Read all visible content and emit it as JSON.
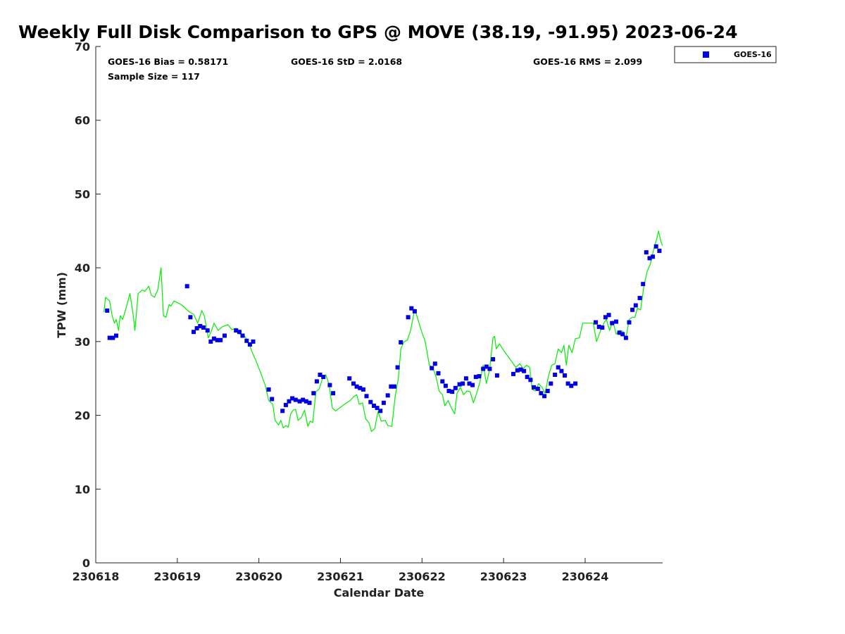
{
  "chart_data": {
    "type": "scatter",
    "title": "Weekly Full Disk Comparison to GPS @ MOVE (38.19, -91.95) 2023-06-24",
    "xlabel": "Calendar Date",
    "ylabel": "TPW (mm)",
    "xlim": [
      0,
      6.95
    ],
    "ylim": [
      0,
      70
    ],
    "xticks": [
      0,
      1,
      2,
      3,
      4,
      5,
      6
    ],
    "xtick_labels": [
      "230618",
      "230619",
      "230620",
      "230621",
      "230622",
      "230623",
      "230624"
    ],
    "yticks": [
      0,
      10,
      20,
      30,
      40,
      50,
      60,
      70
    ],
    "stats": {
      "bias": "GOES-16 Bias = 0.58171",
      "std": "GOES-16 StD = 2.0168",
      "rms": "GOES-16 RMS = 2.099",
      "sample": "Sample Size = 117"
    },
    "legend": {
      "label": "GOES-16",
      "position": "top-right-outside"
    },
    "colors": {
      "goes": "#0000e0",
      "gps": "#00ee00"
    },
    "series": [
      {
        "name": "GOES-16",
        "style": "square-markers",
        "points": [
          [
            0.14,
            34.2
          ],
          [
            0.17,
            30.5
          ],
          [
            0.21,
            30.5
          ],
          [
            0.25,
            30.8
          ],
          [
            1.12,
            37.5
          ],
          [
            1.16,
            33.3
          ],
          [
            1.2,
            31.3
          ],
          [
            1.24,
            31.8
          ],
          [
            1.28,
            32.1
          ],
          [
            1.32,
            31.9
          ],
          [
            1.37,
            31.5
          ],
          [
            1.41,
            30
          ],
          [
            1.45,
            30.4
          ],
          [
            1.49,
            30.2
          ],
          [
            1.53,
            30.2
          ],
          [
            1.58,
            30.8
          ],
          [
            1.72,
            31.5
          ],
          [
            1.76,
            31.3
          ],
          [
            1.8,
            30.8
          ],
          [
            1.85,
            30.1
          ],
          [
            1.89,
            29.6
          ],
          [
            1.93,
            30
          ],
          [
            2.12,
            23.5
          ],
          [
            2.16,
            22.2
          ],
          [
            2.29,
            20.6
          ],
          [
            2.33,
            21.4
          ],
          [
            2.37,
            21.9
          ],
          [
            2.41,
            22.3
          ],
          [
            2.45,
            22.1
          ],
          [
            2.5,
            21.9
          ],
          [
            2.54,
            22.1
          ],
          [
            2.58,
            21.9
          ],
          [
            2.62,
            21.7
          ],
          [
            2.67,
            23
          ],
          [
            2.71,
            24.6
          ],
          [
            2.75,
            25.5
          ],
          [
            2.79,
            25.2
          ],
          [
            2.87,
            24.1
          ],
          [
            2.91,
            23
          ],
          [
            3.11,
            25
          ],
          [
            3.16,
            24.3
          ],
          [
            3.2,
            23.9
          ],
          [
            3.24,
            23.7
          ],
          [
            3.28,
            23.5
          ],
          [
            3.32,
            22.6
          ],
          [
            3.37,
            21.8
          ],
          [
            3.41,
            21.3
          ],
          [
            3.45,
            21
          ],
          [
            3.49,
            20.6
          ],
          [
            3.53,
            21.7
          ],
          [
            3.58,
            22.7
          ],
          [
            3.62,
            23.9
          ],
          [
            3.66,
            23.9
          ],
          [
            3.7,
            26.5
          ],
          [
            3.74,
            29.9
          ],
          [
            3.83,
            33.3
          ],
          [
            3.87,
            34.5
          ],
          [
            3.91,
            34.1
          ],
          [
            4.12,
            26.4
          ],
          [
            4.16,
            27
          ],
          [
            4.2,
            25.7
          ],
          [
            4.25,
            24.6
          ],
          [
            4.29,
            24
          ],
          [
            4.33,
            23.3
          ],
          [
            4.37,
            23.2
          ],
          [
            4.41,
            23.7
          ],
          [
            4.46,
            24.2
          ],
          [
            4.5,
            24.3
          ],
          [
            4.54,
            25
          ],
          [
            4.58,
            24.3
          ],
          [
            4.62,
            24.1
          ],
          [
            4.66,
            25.2
          ],
          [
            4.7,
            25.3
          ],
          [
            4.75,
            26.3
          ],
          [
            4.79,
            26.6
          ],
          [
            4.83,
            26.3
          ],
          [
            4.87,
            27.6
          ],
          [
            4.92,
            25.4
          ],
          [
            5.12,
            25.6
          ],
          [
            5.17,
            26.1
          ],
          [
            5.21,
            26.2
          ],
          [
            5.25,
            26
          ],
          [
            5.29,
            25.2
          ],
          [
            5.33,
            24.8
          ],
          [
            5.37,
            23.8
          ],
          [
            5.42,
            23.6
          ],
          [
            5.46,
            23
          ],
          [
            5.5,
            22.6
          ],
          [
            5.54,
            23.3
          ],
          [
            5.58,
            24.3
          ],
          [
            5.63,
            25.5
          ],
          [
            5.67,
            26.5
          ],
          [
            5.71,
            26
          ],
          [
            5.75,
            25.4
          ],
          [
            5.79,
            24.3
          ],
          [
            5.83,
            24
          ],
          [
            5.88,
            24.3
          ],
          [
            6.13,
            32.6
          ],
          [
            6.17,
            32
          ],
          [
            6.21,
            31.9
          ],
          [
            6.25,
            33.3
          ],
          [
            6.29,
            33.6
          ],
          [
            6.33,
            32.5
          ],
          [
            6.38,
            32.7
          ],
          [
            6.42,
            31.2
          ],
          [
            6.46,
            31
          ],
          [
            6.5,
            30.5
          ],
          [
            6.54,
            32.6
          ],
          [
            6.58,
            34.3
          ],
          [
            6.62,
            34.9
          ],
          [
            6.67,
            35.9
          ],
          [
            6.71,
            37.8
          ],
          [
            6.75,
            42.1
          ],
          [
            6.79,
            41.3
          ],
          [
            6.83,
            41.5
          ],
          [
            6.87,
            42.9
          ],
          [
            6.91,
            42.3
          ]
        ]
      },
      {
        "name": "GPS",
        "style": "line",
        "points": [
          [
            0.1,
            34
          ],
          [
            0.12,
            36
          ],
          [
            0.17,
            35.5
          ],
          [
            0.2,
            33.5
          ],
          [
            0.23,
            32.5
          ],
          [
            0.25,
            33
          ],
          [
            0.28,
            31.5
          ],
          [
            0.3,
            33.5
          ],
          [
            0.33,
            33
          ],
          [
            0.37,
            34.5
          ],
          [
            0.42,
            36.5
          ],
          [
            0.46,
            33.5
          ],
          [
            0.48,
            31.5
          ],
          [
            0.52,
            36.5
          ],
          [
            0.57,
            37
          ],
          [
            0.6,
            36.8
          ],
          [
            0.65,
            37.5
          ],
          [
            0.68,
            36.3
          ],
          [
            0.72,
            36
          ],
          [
            0.76,
            37
          ],
          [
            0.8,
            40
          ],
          [
            0.83,
            33.5
          ],
          [
            0.86,
            33.3
          ],
          [
            0.9,
            35
          ],
          [
            0.92,
            34.8
          ],
          [
            0.96,
            35.5
          ],
          [
            1.05,
            35
          ],
          [
            1.15,
            34
          ],
          [
            1.2,
            33.7
          ],
          [
            1.25,
            32.5
          ],
          [
            1.3,
            34.2
          ],
          [
            1.33,
            33.5
          ],
          [
            1.38,
            30.5
          ],
          [
            1.42,
            31.5
          ],
          [
            1.45,
            32.5
          ],
          [
            1.5,
            31.5
          ],
          [
            1.55,
            32
          ],
          [
            1.62,
            32.3
          ],
          [
            1.67,
            31.6
          ],
          [
            1.72,
            31.8
          ],
          [
            1.77,
            31
          ],
          [
            1.82,
            30.8
          ],
          [
            1.87,
            30
          ],
          [
            1.92,
            28.5
          ],
          [
            1.96,
            27.5
          ],
          [
            2.02,
            25.8
          ],
          [
            2.08,
            24
          ],
          [
            2.12,
            22
          ],
          [
            2.17,
            21.5
          ],
          [
            2.2,
            19.3
          ],
          [
            2.24,
            18.7
          ],
          [
            2.27,
            19.3
          ],
          [
            2.3,
            18.3
          ],
          [
            2.33,
            18.6
          ],
          [
            2.36,
            18.4
          ],
          [
            2.39,
            20.2
          ],
          [
            2.42,
            20.7
          ],
          [
            2.45,
            20.8
          ],
          [
            2.48,
            19.3
          ],
          [
            2.52,
            19.7
          ],
          [
            2.56,
            20.7
          ],
          [
            2.6,
            18.5
          ],
          [
            2.63,
            19.2
          ],
          [
            2.66,
            19
          ],
          [
            2.7,
            23.2
          ],
          [
            2.74,
            23.6
          ],
          [
            2.78,
            25
          ],
          [
            2.82,
            25.5
          ],
          [
            2.86,
            24.2
          ],
          [
            2.9,
            21
          ],
          [
            2.94,
            20.6
          ],
          [
            3.05,
            21.5
          ],
          [
            3.12,
            22
          ],
          [
            3.16,
            22.5
          ],
          [
            3.2,
            22.8
          ],
          [
            3.23,
            21.5
          ],
          [
            3.27,
            21.7
          ],
          [
            3.31,
            19.5
          ],
          [
            3.35,
            19
          ],
          [
            3.38,
            17.8
          ],
          [
            3.42,
            18.2
          ],
          [
            3.46,
            20.5
          ],
          [
            3.5,
            19.2
          ],
          [
            3.55,
            19.3
          ],
          [
            3.58,
            18.6
          ],
          [
            3.63,
            18.5
          ],
          [
            3.67,
            22.5
          ],
          [
            3.71,
            25
          ],
          [
            3.74,
            29
          ],
          [
            3.78,
            30
          ],
          [
            3.82,
            30.2
          ],
          [
            3.86,
            31.5
          ],
          [
            3.91,
            34.4
          ],
          [
            3.95,
            33
          ],
          [
            3.99,
            31.5
          ],
          [
            4.04,
            30
          ],
          [
            4.09,
            26.8
          ],
          [
            4.13,
            26.5
          ],
          [
            4.17,
            25.3
          ],
          [
            4.21,
            23.3
          ],
          [
            4.25,
            22.8
          ],
          [
            4.28,
            21.3
          ],
          [
            4.32,
            22
          ],
          [
            4.36,
            21
          ],
          [
            4.4,
            20.2
          ],
          [
            4.43,
            23
          ],
          [
            4.47,
            23.8
          ],
          [
            4.51,
            22.8
          ],
          [
            4.55,
            23.3
          ],
          [
            4.59,
            23.2
          ],
          [
            4.63,
            21.7
          ],
          [
            4.67,
            23
          ],
          [
            4.71,
            24.5
          ],
          [
            4.75,
            26.8
          ],
          [
            4.79,
            24.3
          ],
          [
            4.83,
            26.3
          ],
          [
            4.87,
            30.5
          ],
          [
            4.89,
            30.7
          ],
          [
            4.91,
            29
          ],
          [
            4.95,
            29.7
          ],
          [
            5,
            28.8
          ],
          [
            5.1,
            27.3
          ],
          [
            5.15,
            26.5
          ],
          [
            5.2,
            27
          ],
          [
            5.24,
            26.3
          ],
          [
            5.28,
            26.8
          ],
          [
            5.32,
            26.5
          ],
          [
            5.35,
            23.5
          ],
          [
            5.39,
            23.3
          ],
          [
            5.43,
            24.3
          ],
          [
            5.47,
            23.8
          ],
          [
            5.51,
            23
          ],
          [
            5.55,
            25.3
          ],
          [
            5.59,
            26.8
          ],
          [
            5.63,
            27
          ],
          [
            5.67,
            29
          ],
          [
            5.71,
            28.5
          ],
          [
            5.74,
            29.5
          ],
          [
            5.77,
            26.8
          ],
          [
            5.8,
            29.5
          ],
          [
            5.84,
            28.5
          ],
          [
            5.88,
            30.4
          ],
          [
            5.93,
            30.5
          ],
          [
            5.97,
            32.5
          ],
          [
            6.1,
            32.5
          ],
          [
            6.14,
            30
          ],
          [
            6.19,
            31.5
          ],
          [
            6.23,
            32.5
          ],
          [
            6.26,
            33
          ],
          [
            6.3,
            31.5
          ],
          [
            6.34,
            32.8
          ],
          [
            6.38,
            31
          ],
          [
            6.42,
            31.5
          ],
          [
            6.46,
            31.4
          ],
          [
            6.5,
            30.5
          ],
          [
            6.54,
            33
          ],
          [
            6.58,
            33.3
          ],
          [
            6.61,
            33.3
          ],
          [
            6.64,
            34.5
          ],
          [
            6.68,
            34.3
          ],
          [
            6.72,
            37.5
          ],
          [
            6.76,
            39.5
          ],
          [
            6.8,
            40.5
          ],
          [
            6.84,
            42.5
          ],
          [
            6.88,
            44
          ],
          [
            6.9,
            45
          ],
          [
            6.93,
            43.5
          ],
          [
            6.95,
            43
          ]
        ]
      }
    ]
  }
}
